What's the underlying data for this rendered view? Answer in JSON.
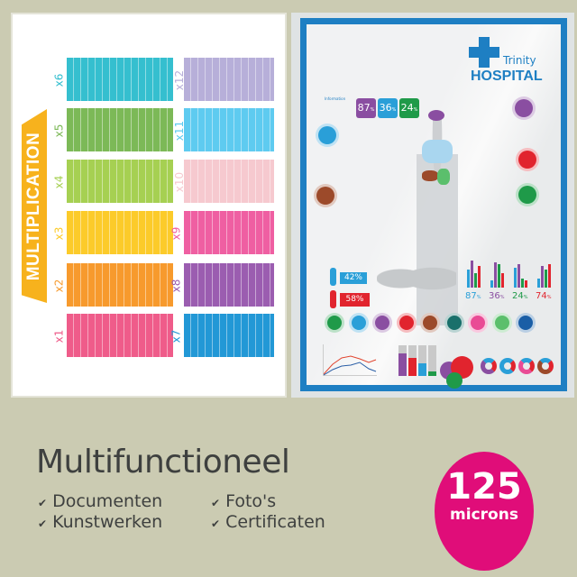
{
  "left_poster": {
    "banner_title": "MULTIPLICATION",
    "tables": [
      {
        "label": "x6",
        "color": "#35bfcf"
      },
      {
        "label": "x12",
        "color": "#b7afd9"
      },
      {
        "label": "x5",
        "color": "#7cb957"
      },
      {
        "label": "x11",
        "color": "#5ecbf0"
      },
      {
        "label": "x4",
        "color": "#a6d052"
      },
      {
        "label": "x10",
        "color": "#f6c9cf"
      },
      {
        "label": "x3",
        "color": "#fccb2a"
      },
      {
        "label": "x9",
        "color": "#ef5fa2"
      },
      {
        "label": "x2",
        "color": "#f79a2d"
      },
      {
        "label": "x8",
        "color": "#9b5db0"
      },
      {
        "label": "x1",
        "color": "#ef5c8a"
      },
      {
        "label": "x7",
        "color": "#2298d6"
      }
    ]
  },
  "right_poster": {
    "brand_top": "Trinity",
    "brand_main": "HOSPITAL",
    "accent": "#1e7fc3",
    "info_label": "Information",
    "stats_top": [
      {
        "v": "87",
        "u": "%",
        "color": "#8a4ea1"
      },
      {
        "v": "36",
        "u": "%",
        "color": "#2a9fd8"
      },
      {
        "v": "24",
        "u": "%",
        "color": "#1f9a49"
      }
    ],
    "male_pct": "42%",
    "female_pct": "58%",
    "stats_bottom": [
      {
        "v": "87",
        "u": "%",
        "color": "#2a9fd8"
      },
      {
        "v": "36",
        "u": "%",
        "color": "#8a4ea1"
      },
      {
        "v": "24",
        "u": "%",
        "color": "#1f9a49"
      },
      {
        "v": "74",
        "u": "%",
        "color": "#e1242e"
      }
    ],
    "icons": [
      {
        "name": "stomach-icon",
        "color": "#1f9a49"
      },
      {
        "name": "lungs-icon",
        "color": "#2a9fd8"
      },
      {
        "name": "brain-icon",
        "color": "#8a4ea1"
      },
      {
        "name": "heart-organ-icon",
        "color": "#e1242e"
      },
      {
        "name": "liver-icon",
        "color": "#9c4a2a"
      },
      {
        "name": "tooth-icon",
        "color": "#19706b"
      },
      {
        "name": "heart-icon",
        "color": "#e94b95"
      },
      {
        "name": "sleep-icon",
        "color": "#5bbf6c"
      },
      {
        "name": "apple-icon",
        "color": "#1a5ea6"
      }
    ]
  },
  "headline": "Multifunctioneel",
  "features": [
    "Documenten",
    "Kunstwerken",
    "Foto's",
    "Certificaten"
  ],
  "badge": {
    "value": "125",
    "unit": "microns",
    "color": "#e00d79"
  }
}
